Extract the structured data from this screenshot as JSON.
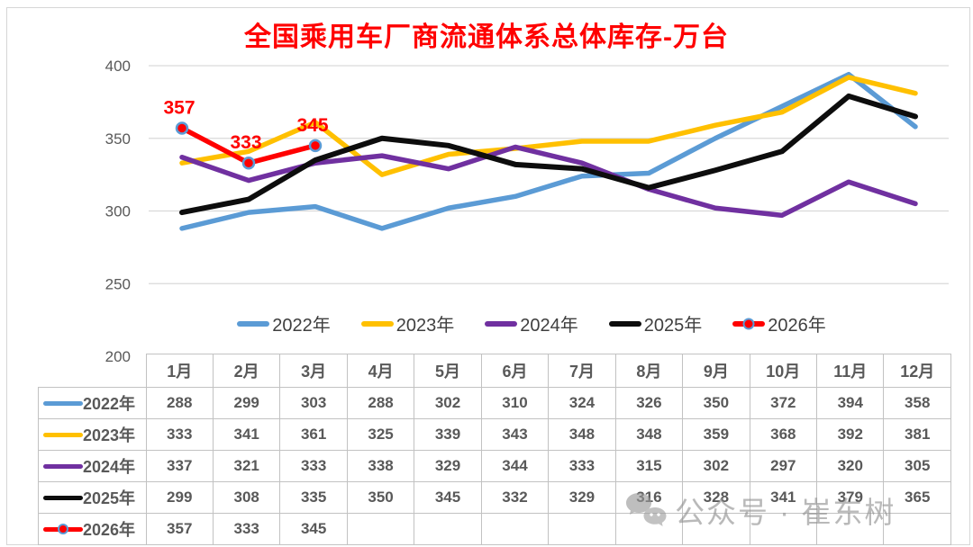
{
  "title": "全国乘用车厂商流通体系总体库存-万台",
  "chart_data": {
    "type": "line",
    "categories": [
      "1月",
      "2月",
      "3月",
      "4月",
      "5月",
      "6月",
      "7月",
      "8月",
      "9月",
      "10月",
      "11月",
      "12月"
    ],
    "series": [
      {
        "name": "2022年",
        "color": "#5B9BD5",
        "values": [
          288,
          299,
          303,
          288,
          302,
          310,
          324,
          326,
          350,
          372,
          394,
          358
        ]
      },
      {
        "name": "2023年",
        "color": "#FFC000",
        "values": [
          333,
          341,
          361,
          325,
          339,
          343,
          348,
          348,
          359,
          368,
          392,
          381
        ]
      },
      {
        "name": "2024年",
        "color": "#7030A0",
        "values": [
          337,
          321,
          333,
          338,
          329,
          344,
          333,
          315,
          302,
          297,
          320,
          305
        ]
      },
      {
        "name": "2025年",
        "color": "#0D0D0D",
        "values": [
          299,
          308,
          335,
          350,
          345,
          332,
          329,
          316,
          328,
          341,
          379,
          365
        ]
      },
      {
        "name": "2026年",
        "color": "#FF0000",
        "values": [
          357,
          333,
          345
        ],
        "marker": true,
        "marker_fill": "#FF0000",
        "marker_edge": "#5B9BD5",
        "show_data_labels": true
      }
    ],
    "ylim": [
      200,
      400
    ],
    "yticks": [
      200,
      250,
      300,
      350,
      400
    ],
    "grid": true,
    "legend_position": "bottom",
    "title": "全国乘用车厂商流通体系总体库存-万台"
  },
  "table": {
    "corner_label": "",
    "col_headers": [
      "1月",
      "2月",
      "3月",
      "4月",
      "5月",
      "6月",
      "7月",
      "8月",
      "9月",
      "10月",
      "11月",
      "12月"
    ],
    "rows": [
      {
        "label": "2022年",
        "values": [
          "288",
          "299",
          "303",
          "288",
          "302",
          "310",
          "324",
          "326",
          "350",
          "372",
          "394",
          "358"
        ]
      },
      {
        "label": "2023年",
        "values": [
          "333",
          "341",
          "361",
          "325",
          "339",
          "343",
          "348",
          "348",
          "359",
          "368",
          "392",
          "381"
        ]
      },
      {
        "label": "2024年",
        "values": [
          "337",
          "321",
          "333",
          "338",
          "329",
          "344",
          "333",
          "315",
          "302",
          "297",
          "320",
          "305"
        ]
      },
      {
        "label": "2025年",
        "values": [
          "299",
          "308",
          "335",
          "350",
          "345",
          "332",
          "329",
          "316",
          "328",
          "341",
          "379",
          "365"
        ]
      },
      {
        "label": "2026年",
        "values": [
          "357",
          "333",
          "345",
          "",
          "",
          "",
          "",
          "",
          "",
          "",
          "",
          ""
        ]
      }
    ]
  },
  "watermark": {
    "text": "公众号 · 崔东树",
    "icon": "wechat-icon"
  },
  "colors": {
    "title": "#FF0000",
    "grid": "#D9D9D9",
    "axis_text": "#595959",
    "table_border": "#C2C2C2",
    "table_text": "#595959",
    "data_label": "#FF0000"
  }
}
